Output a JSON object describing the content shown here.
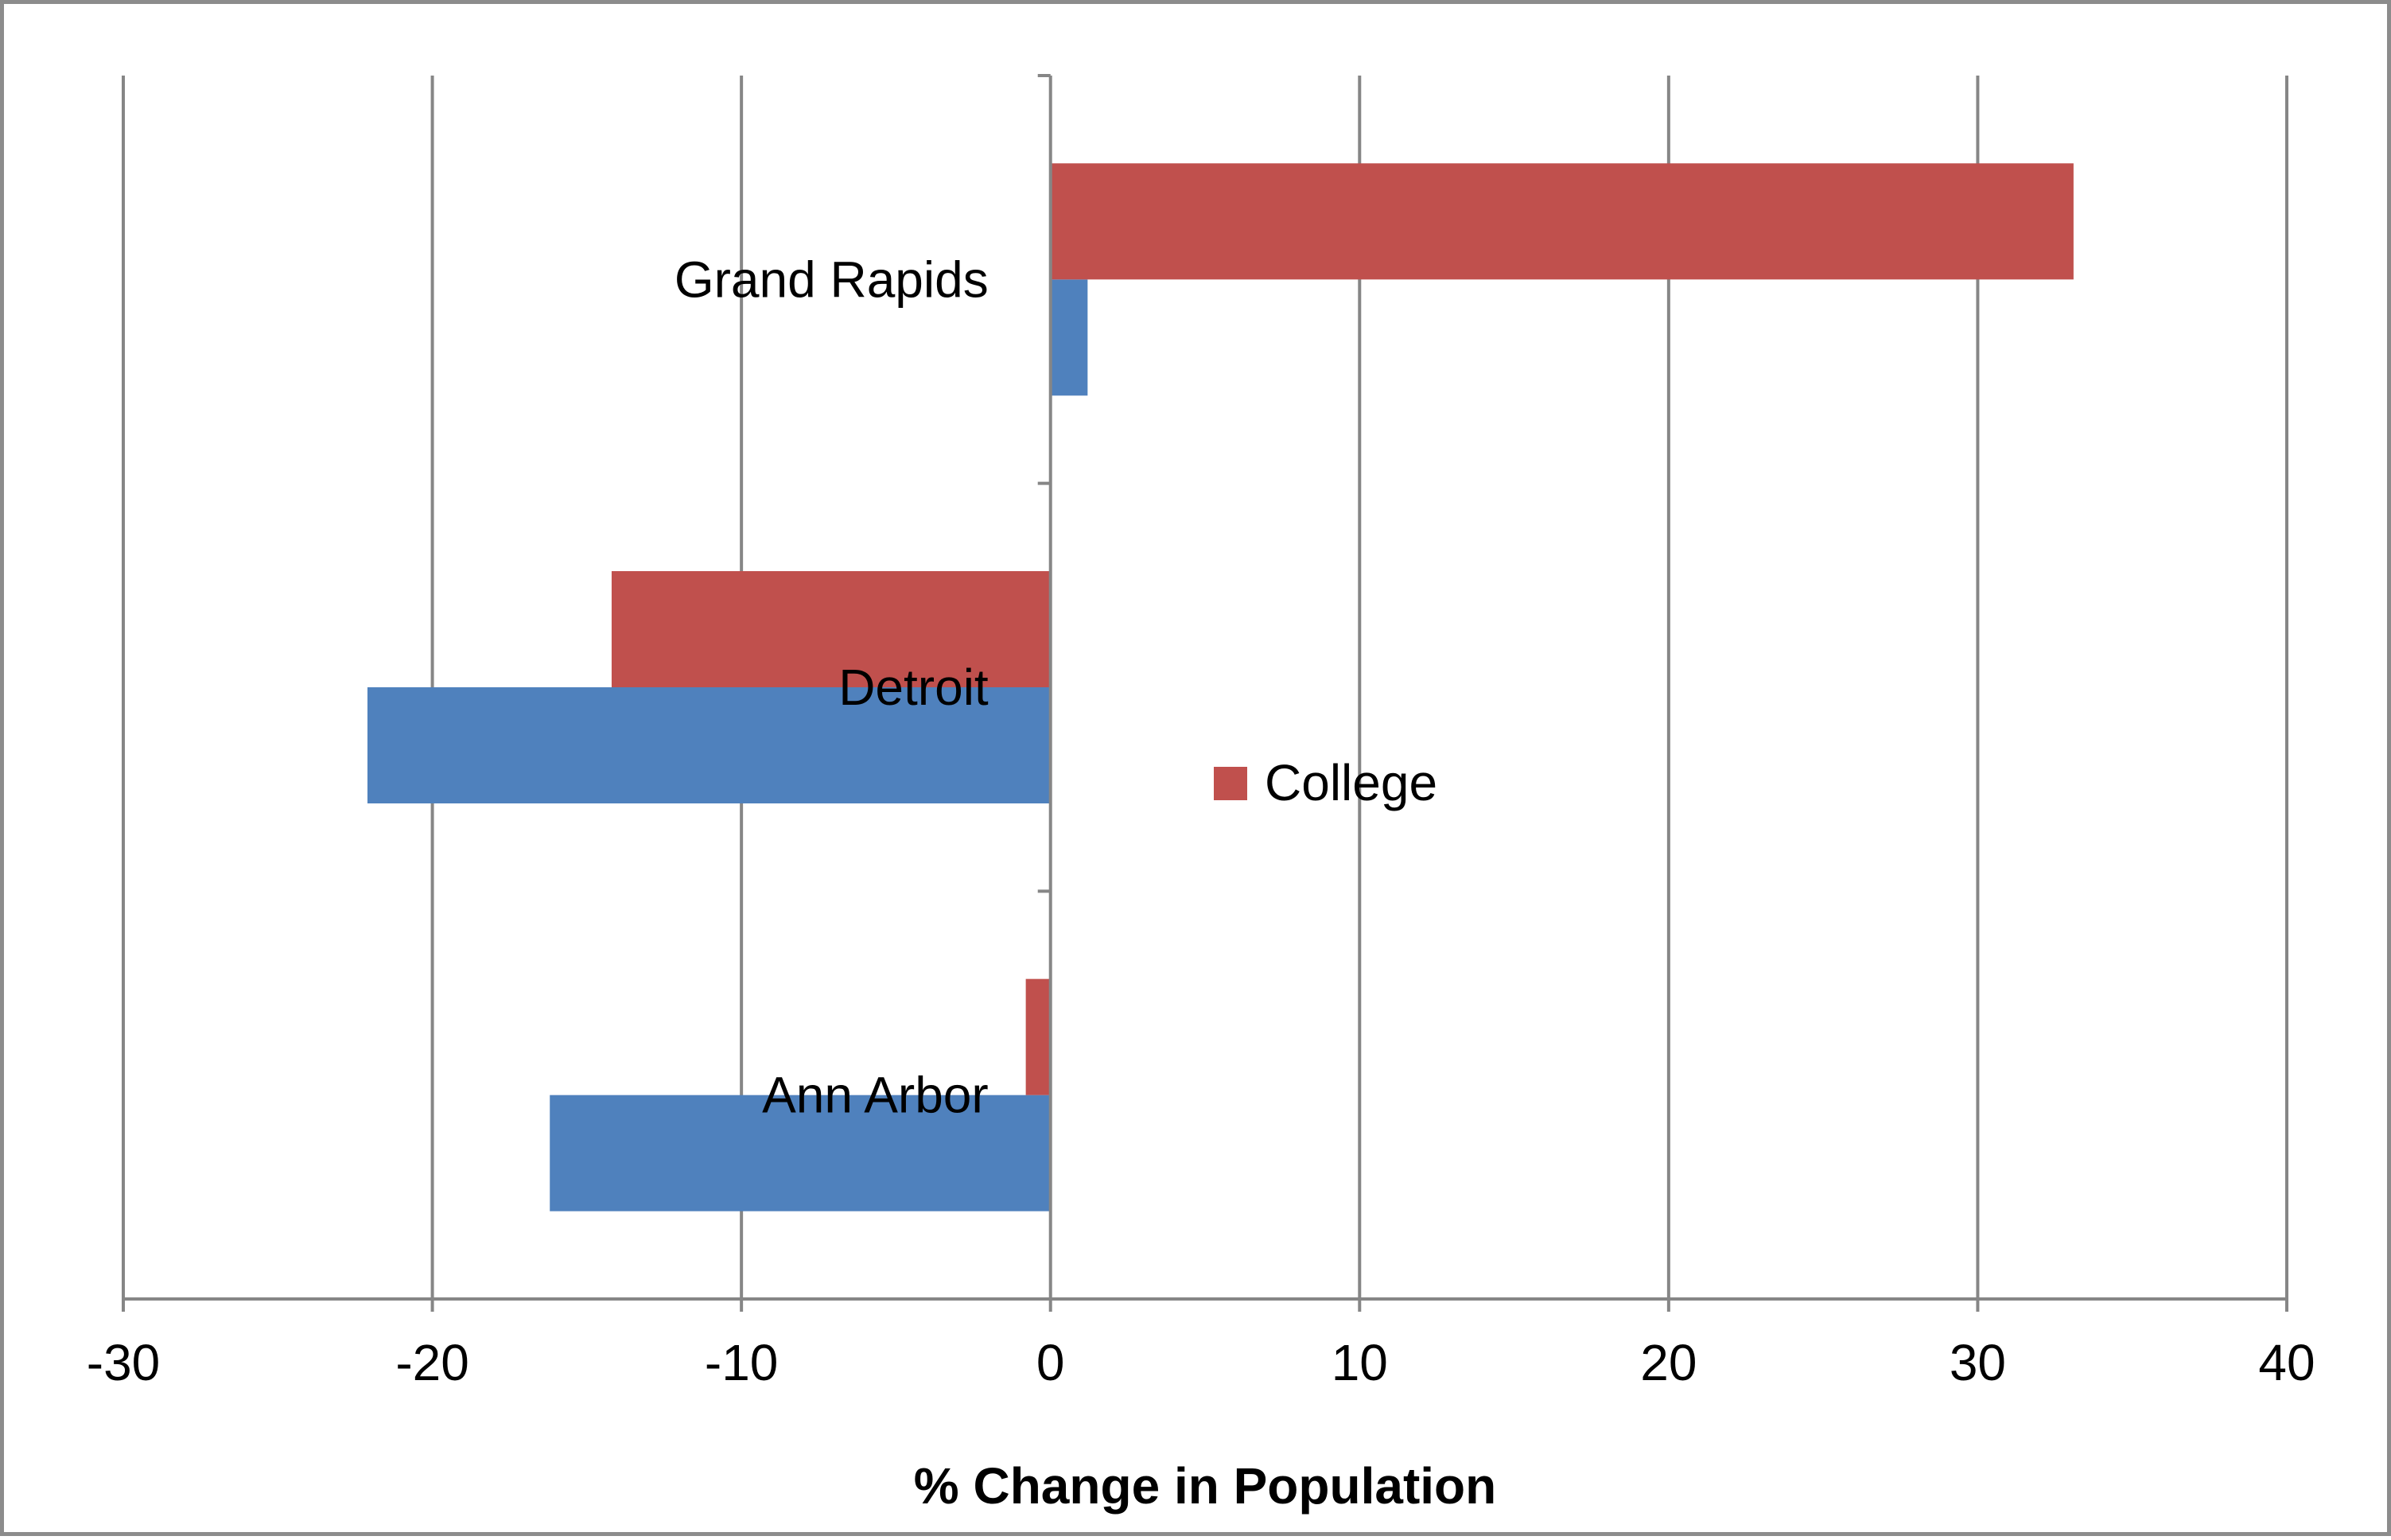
{
  "chart_data": {
    "type": "bar",
    "orientation": "horizontal",
    "categories": [
      "Ann Arbor",
      "Detroit",
      "Grand Rapids"
    ],
    "series": [
      {
        "name": "",
        "color": "#4f81bd",
        "values": [
          -16.2,
          -22.1,
          1.2
        ]
      },
      {
        "name": "College",
        "color": "#c0504d",
        "values": [
          -0.8,
          -14.2,
          33.1
        ]
      }
    ],
    "xlabel": "% Change in Population",
    "xlim": [
      -30,
      40
    ],
    "xticks": [
      -30,
      -20,
      -10,
      0,
      10,
      20,
      30,
      40
    ],
    "grid": true,
    "legend": {
      "placement": "center",
      "entries": [
        "College"
      ]
    }
  }
}
